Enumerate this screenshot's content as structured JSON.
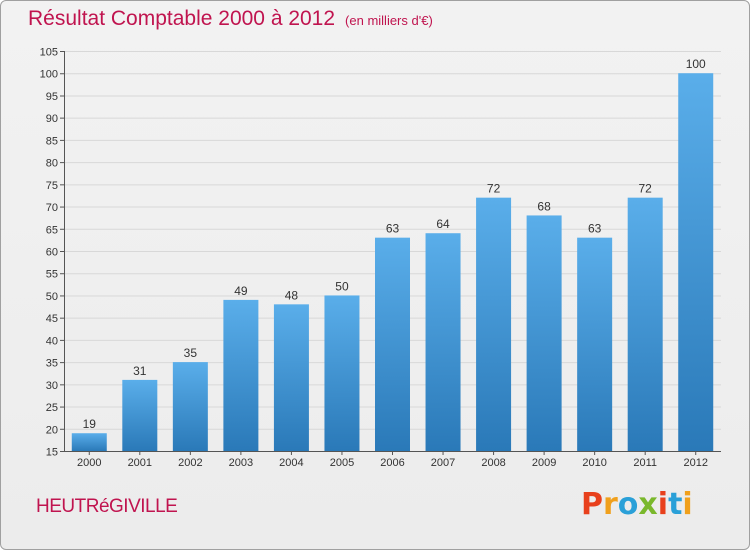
{
  "header": {
    "title": "Résultat Comptable 2000 à 2012",
    "unit": "(en milliers d'€)"
  },
  "footer": {
    "town": "HEUTRéGIVILLE",
    "logo_text": "Proxiti"
  },
  "colors": {
    "title": "#c0144f",
    "bar_top": "#5aaeea",
    "bar_bottom": "#2a79b8",
    "logo_letters": [
      "#e8401c",
      "#f0a01c",
      "#2aa0d8",
      "#7ab82c",
      "#e8401c",
      "#2aa0d8",
      "#f0a01c"
    ]
  },
  "chart_data": {
    "type": "bar",
    "categories": [
      "2000",
      "2001",
      "2002",
      "2003",
      "2004",
      "2005",
      "2006",
      "2007",
      "2008",
      "2009",
      "2010",
      "2011",
      "2012"
    ],
    "values": [
      19,
      31,
      35,
      49,
      48,
      50,
      63,
      64,
      72,
      68,
      63,
      72,
      100
    ],
    "ylim": [
      15,
      105
    ],
    "yticks": [
      15,
      20,
      25,
      30,
      35,
      40,
      45,
      50,
      55,
      60,
      65,
      70,
      75,
      80,
      85,
      90,
      95,
      100,
      105
    ],
    "grid": true,
    "xlabel": "",
    "ylabel": ""
  }
}
